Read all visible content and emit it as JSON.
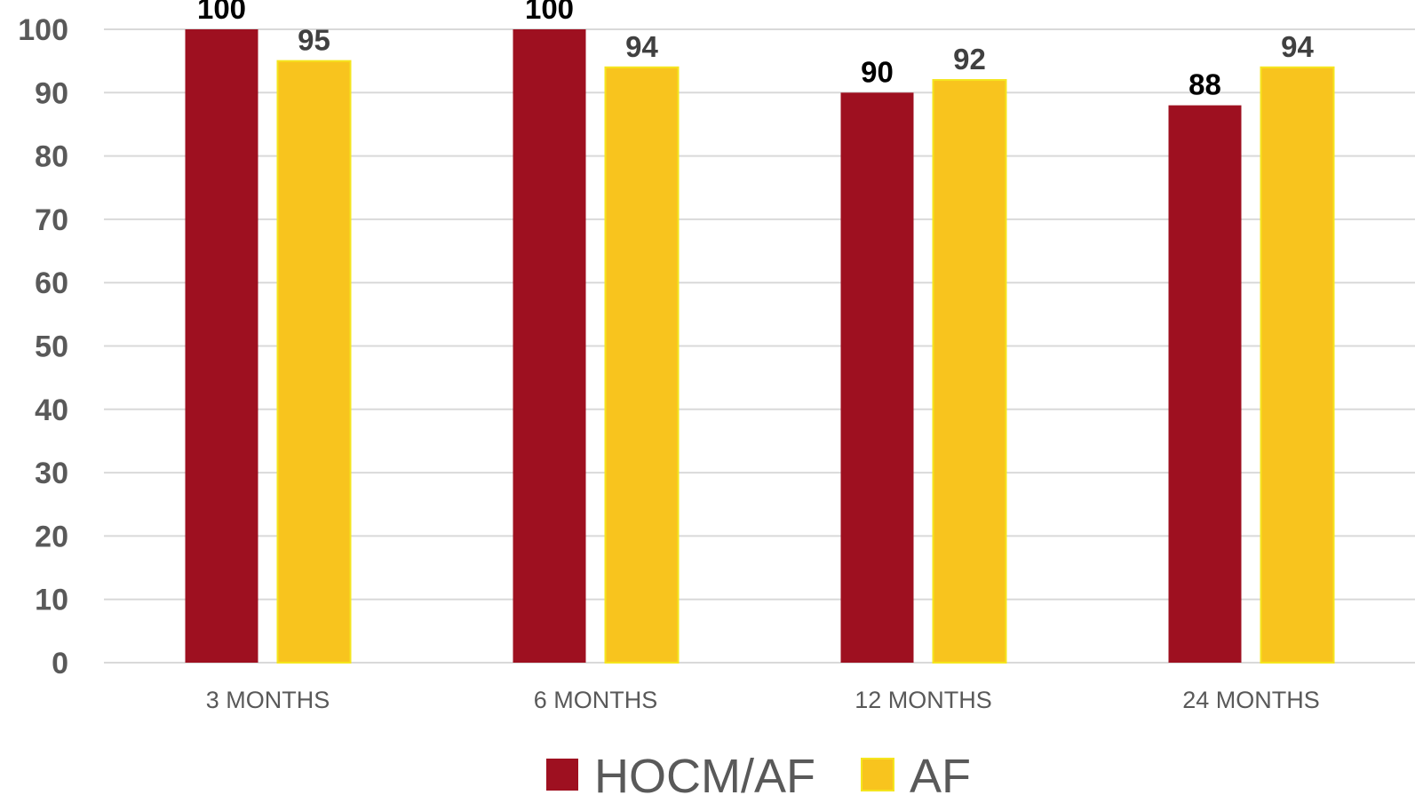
{
  "chart_data": {
    "type": "bar",
    "title": "",
    "xlabel": "",
    "ylabel": "",
    "categories": [
      "3 MONTHS",
      "6 MONTHS",
      "12 MONTHS",
      "24 MONTHS"
    ],
    "series": [
      {
        "name": "HOCM/AF",
        "values": [
          100,
          100,
          90,
          88
        ],
        "labels": [
          "100",
          "100",
          "90",
          "88"
        ],
        "color": "#9E1020",
        "label_color": "#000000"
      },
      {
        "name": "AF",
        "values": [
          95,
          94,
          92,
          94
        ],
        "labels": [
          "95",
          "94",
          "92",
          "94"
        ],
        "color": "#F8C41E",
        "label_color": "#404040"
      }
    ],
    "ylim": [
      0,
      100
    ],
    "yticks": [
      0,
      10,
      20,
      30,
      40,
      50,
      60,
      70,
      80,
      90,
      100
    ],
    "ytick_labels": [
      "0",
      "10",
      "20",
      "30",
      "40",
      "50",
      "60",
      "70",
      "80",
      "90",
      "100"
    ],
    "grid": true,
    "gridline_color": "#D9D9D9",
    "legend_position": "bottom",
    "data_labels": true
  }
}
